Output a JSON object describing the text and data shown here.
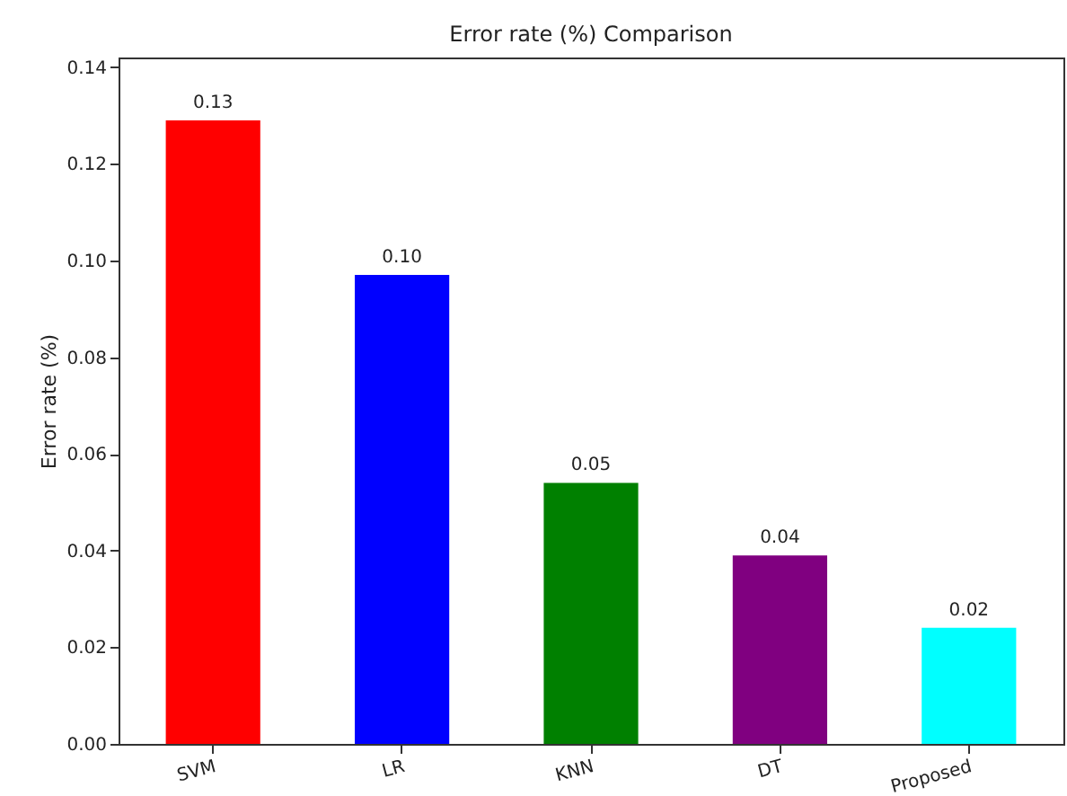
{
  "chart_data": {
    "type": "bar",
    "title": "Error rate (%) Comparison",
    "ylabel": "Error rate (%)",
    "categories": [
      "SVM",
      "LR",
      "KNN",
      "DT",
      "Proposed"
    ],
    "values": [
      0.129,
      0.097,
      0.054,
      0.039,
      0.024
    ],
    "colors": [
      "#ff0000",
      "#0000ff",
      "#008000",
      "#800080",
      "#00ffff"
    ],
    "value_labels": [
      "0.13",
      "0.10",
      "0.05",
      "0.04",
      "0.02"
    ],
    "ylim": [
      0,
      0.142
    ],
    "yticks": [
      {
        "value": 0,
        "label": "0.00"
      },
      0.02,
      0.04,
      0.06,
      0.08,
      {
        "value": 0.1,
        "label": "0.10"
      },
      0.12,
      0.14
    ]
  }
}
